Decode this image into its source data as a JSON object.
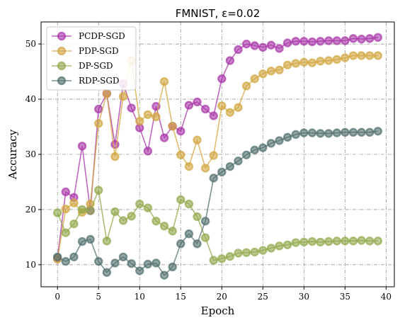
{
  "chart_data": {
    "type": "line",
    "title": "FMNIST, ε=0.02",
    "xlabel": "Epoch",
    "ylabel": "Accuracy",
    "xlim": [
      -2,
      41
    ],
    "ylim": [
      6,
      54
    ],
    "xticks": [
      0,
      5,
      10,
      15,
      20,
      25,
      30,
      35,
      40
    ],
    "yticks": [
      10,
      20,
      30,
      40,
      50
    ],
    "grid": true,
    "legend_position": "top-left",
    "x": [
      0,
      1,
      2,
      3,
      4,
      5,
      6,
      7,
      8,
      9,
      10,
      11,
      12,
      13,
      14,
      15,
      16,
      17,
      18,
      19,
      20,
      21,
      22,
      23,
      24,
      25,
      26,
      27,
      28,
      29,
      30,
      31,
      32,
      33,
      34,
      35,
      36,
      37,
      38,
      39
    ],
    "series": [
      {
        "name": "PCDP-SGD",
        "color": "#a834a8",
        "values": [
          11.2,
          23.2,
          22.2,
          31.5,
          19.8,
          38.2,
          41.0,
          31.8,
          42.8,
          38.4,
          34.8,
          30.6,
          38.7,
          33.0,
          35.1,
          34.2,
          38.9,
          39.5,
          38.2,
          37.0,
          43.7,
          47.0,
          49.0,
          50.0,
          49.7,
          49.4,
          49.8,
          49.2,
          50.2,
          50.5,
          50.5,
          50.4,
          50.5,
          50.6,
          50.6,
          50.6,
          51.0,
          50.9,
          51.0,
          51.2
        ]
      },
      {
        "name": "PDP-SGD",
        "color": "#d1a53d",
        "values": [
          11.0,
          20.1,
          21.2,
          19.5,
          21.0,
          35.6,
          41.0,
          29.6,
          40.5,
          47.0,
          36.0,
          37.2,
          36.8,
          43.2,
          35.1,
          29.9,
          27.8,
          32.6,
          27.5,
          29.8,
          38.8,
          37.6,
          38.5,
          42.4,
          43.7,
          44.6,
          45.1,
          45.3,
          46.2,
          46.5,
          46.7,
          46.6,
          46.9,
          47.0,
          47.2,
          47.5,
          47.9,
          47.9,
          47.9,
          47.9
        ]
      },
      {
        "name": "DP-SGD",
        "color": "#8fa84a",
        "values": [
          19.4,
          15.8,
          17.4,
          20.0,
          19.8,
          23.5,
          14.3,
          19.6,
          18.0,
          18.8,
          21.0,
          20.3,
          17.9,
          17.0,
          16.1,
          21.8,
          21.0,
          18.7,
          14.9,
          10.8,
          11.1,
          11.5,
          12.1,
          12.2,
          12.3,
          12.6,
          13.0,
          13.4,
          13.6,
          14.0,
          14.1,
          14.2,
          14.1,
          14.2,
          14.3,
          14.3,
          14.3,
          14.4,
          14.3,
          14.3
        ]
      },
      {
        "name": "RDP-SGD",
        "color": "#4f6e6c",
        "values": [
          11.4,
          10.6,
          11.4,
          14.2,
          14.6,
          10.6,
          8.6,
          10.3,
          11.4,
          10.2,
          8.9,
          10.1,
          10.3,
          8.1,
          9.6,
          13.8,
          15.6,
          13.8,
          17.9,
          25.7,
          26.8,
          27.8,
          28.8,
          29.9,
          30.8,
          31.2,
          32.0,
          32.5,
          33.1,
          33.6,
          33.9,
          33.9,
          33.8,
          33.8,
          33.9,
          34.0,
          34.0,
          34.0,
          34.0,
          34.2
        ]
      }
    ]
  }
}
